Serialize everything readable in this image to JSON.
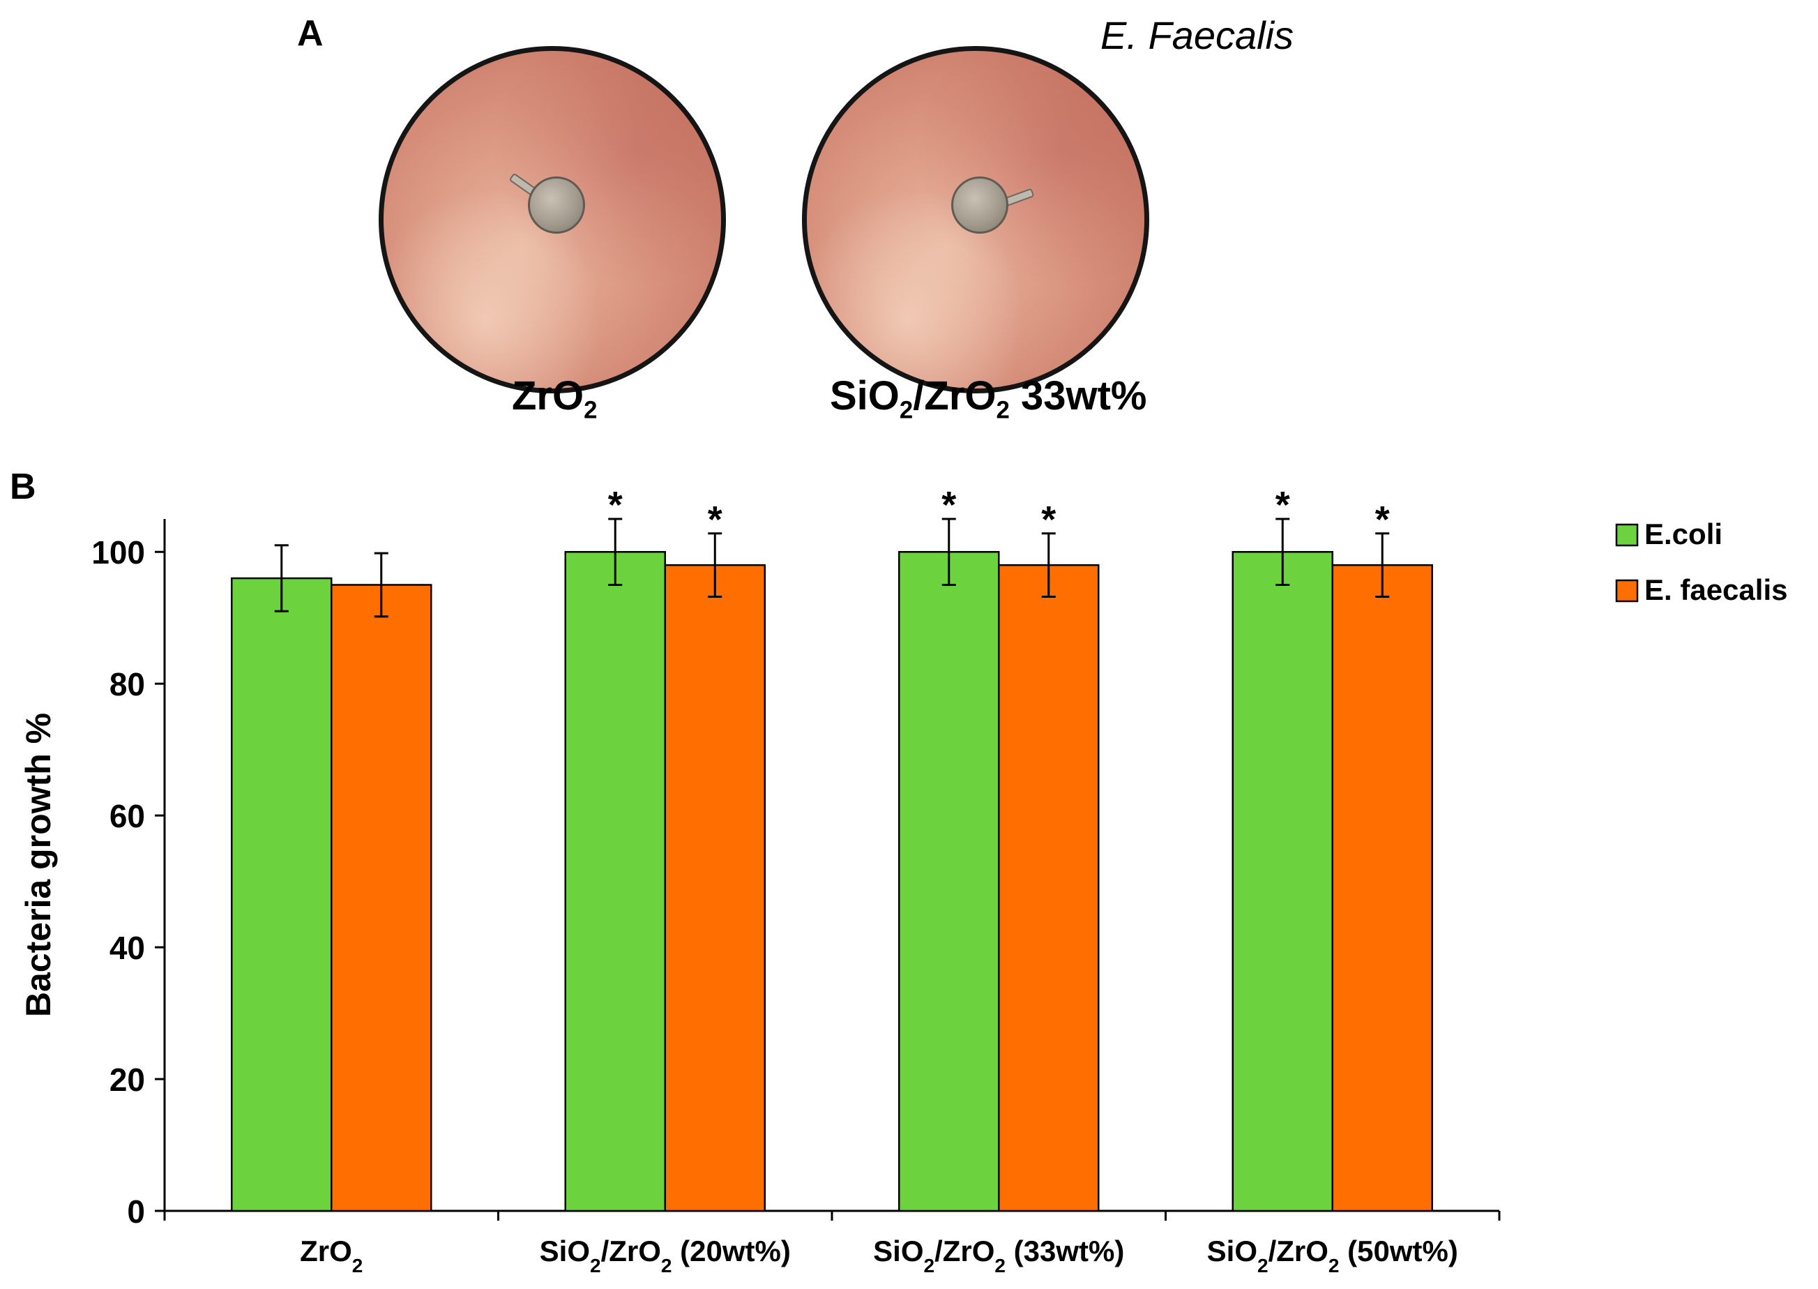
{
  "panel_a": {
    "letter": "A",
    "species_title": "E. Faecalis",
    "plates": [
      {
        "label_main": "ZrO",
        "label_sub": "2",
        "label_rest": ""
      },
      {
        "label_main": "SiO",
        "label_sub": "2",
        "label_rest": "/ZrO",
        "label_sub2": "2",
        "label_tail": " 33wt%"
      }
    ]
  },
  "panel_b": {
    "letter": "B"
  },
  "chart_data": {
    "type": "bar",
    "title": "",
    "xlabel": "",
    "ylabel": "Bacteria growth %",
    "ylim": [
      0,
      105
    ],
    "yticks": [
      0,
      20,
      40,
      60,
      80,
      100
    ],
    "categories": [
      {
        "main": "ZrO",
        "sub": "2",
        "rest": "",
        "sub2": "",
        "tail": ""
      },
      {
        "main": "SiO",
        "sub": "2",
        "rest": "/ZrO",
        "sub2": "2",
        "tail": " (20wt%)"
      },
      {
        "main": "SiO",
        "sub": "2",
        "rest": "/ZrO",
        "sub2": "2",
        "tail": " (33wt%)"
      },
      {
        "main": "SiO",
        "sub": "2",
        "rest": "/ZrO",
        "sub2": "2",
        "tail": " (50wt%)"
      }
    ],
    "series": [
      {
        "name": "E.coli",
        "color": "#6cd33f",
        "values": [
          96,
          100,
          100,
          100
        ],
        "errors": [
          5,
          5,
          5,
          5
        ],
        "significant": [
          false,
          true,
          true,
          true
        ]
      },
      {
        "name": "E. faecalis",
        "color": "#ff6e00",
        "values": [
          95,
          98,
          98,
          98
        ],
        "errors": [
          4.8,
          4.8,
          4.8,
          4.8
        ],
        "significant": [
          false,
          true,
          true,
          true
        ]
      }
    ],
    "significance_marker": "*",
    "legend_position": "top-right",
    "grid": false
  }
}
